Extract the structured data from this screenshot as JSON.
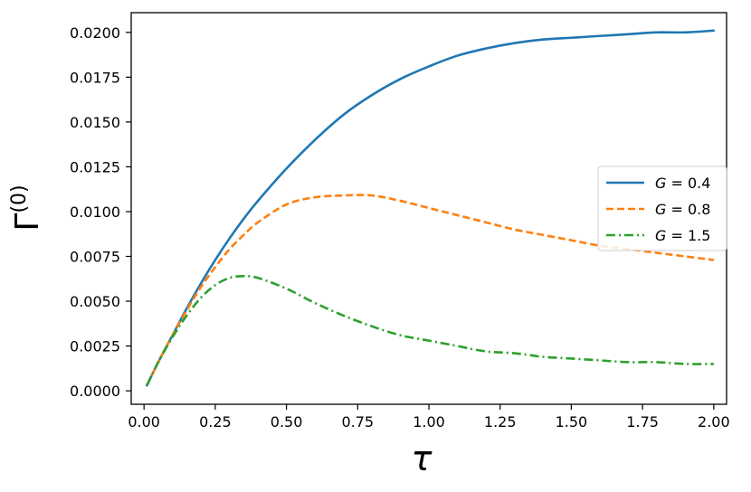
{
  "chart_data": {
    "type": "line",
    "title": "",
    "xlabel": "τ",
    "ylabel_base": "Γ",
    "ylabel_sup": "(0)",
    "xlim": [
      -0.045,
      2.045
    ],
    "ylim": [
      -0.00075,
      0.0211
    ],
    "xticks": [
      "0.00",
      "0.25",
      "0.50",
      "0.75",
      "1.00",
      "1.25",
      "1.50",
      "1.75",
      "2.00"
    ],
    "xtick_values": [
      0,
      0.25,
      0.5,
      0.75,
      1.0,
      1.25,
      1.5,
      1.75,
      2.0
    ],
    "yticks": [
      "0.0000",
      "0.0025",
      "0.0050",
      "0.0075",
      "0.0100",
      "0.0125",
      "0.0150",
      "0.0175",
      "0.0200"
    ],
    "ytick_values": [
      0,
      0.0025,
      0.005,
      0.0075,
      0.01,
      0.0125,
      0.015,
      0.0175,
      0.02
    ],
    "legend_position": "center-right",
    "grid": false,
    "series": [
      {
        "name_var": "G",
        "name_op": " = ",
        "name_val": "0.4",
        "color": "#1f77b4",
        "style": "solid",
        "x": [
          0.01,
          0.05,
          0.1,
          0.15,
          0.2,
          0.25,
          0.3,
          0.35,
          0.4,
          0.5,
          0.6,
          0.7,
          0.8,
          0.9,
          1.0,
          1.1,
          1.2,
          1.3,
          1.4,
          1.5,
          1.6,
          1.7,
          1.8,
          1.9,
          2.0
        ],
        "y": [
          0.0003,
          0.0016,
          0.0031,
          0.0046,
          0.006,
          0.0073,
          0.0085,
          0.0096,
          0.0106,
          0.0124,
          0.014,
          0.0154,
          0.0165,
          0.0174,
          0.0181,
          0.0187,
          0.0191,
          0.0194,
          0.0196,
          0.0197,
          0.0198,
          0.0199,
          0.02,
          0.02,
          0.0201
        ]
      },
      {
        "name_var": "G",
        "name_op": " = ",
        "name_val": "0.8",
        "color": "#ff7f0e",
        "style": "dashed",
        "x": [
          0.01,
          0.05,
          0.1,
          0.15,
          0.2,
          0.25,
          0.3,
          0.35,
          0.4,
          0.5,
          0.6,
          0.7,
          0.8,
          0.9,
          1.0,
          1.1,
          1.2,
          1.3,
          1.4,
          1.5,
          1.6,
          1.7,
          1.8,
          1.9,
          2.0
        ],
        "y": [
          0.0003,
          0.0016,
          0.0031,
          0.0045,
          0.0058,
          0.0069,
          0.0079,
          0.0087,
          0.0094,
          0.0104,
          0.0108,
          0.0109,
          0.0109,
          0.0106,
          0.0102,
          0.0098,
          0.0094,
          0.009,
          0.0087,
          0.0084,
          0.0081,
          0.0079,
          0.0077,
          0.0075,
          0.0073
        ]
      },
      {
        "name_var": "G",
        "name_op": " = ",
        "name_val": "1.5",
        "color": "#2ca02c",
        "style": "dashdot",
        "x": [
          0.01,
          0.05,
          0.1,
          0.15,
          0.2,
          0.25,
          0.3,
          0.35,
          0.4,
          0.5,
          0.6,
          0.7,
          0.8,
          0.9,
          1.0,
          1.1,
          1.2,
          1.3,
          1.4,
          1.5,
          1.6,
          1.7,
          1.8,
          1.9,
          2.0
        ],
        "y": [
          0.0003,
          0.0016,
          0.003,
          0.0042,
          0.0052,
          0.0059,
          0.0063,
          0.0064,
          0.0063,
          0.0057,
          0.0049,
          0.0042,
          0.0036,
          0.0031,
          0.0028,
          0.0025,
          0.0022,
          0.0021,
          0.0019,
          0.0018,
          0.0017,
          0.0016,
          0.0016,
          0.0015,
          0.0015
        ]
      }
    ]
  }
}
